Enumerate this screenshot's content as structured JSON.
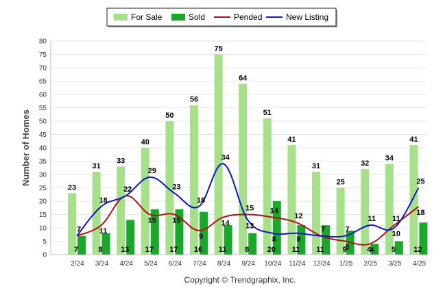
{
  "chart_data": {
    "type": "bar",
    "categories": [
      "2/24",
      "3/24",
      "4/24",
      "5/24",
      "6/24",
      "7/24",
      "8/24",
      "9/24",
      "10/24",
      "11/24",
      "12/24",
      "1/25",
      "2/25",
      "3/25",
      "4/25"
    ],
    "series": [
      {
        "name": "For Sale",
        "type": "bar",
        "color": "#a6e08a",
        "values": [
          23,
          31,
          33,
          40,
          50,
          56,
          75,
          64,
          51,
          41,
          31,
          25,
          32,
          34,
          41
        ]
      },
      {
        "name": "Sold",
        "type": "bar",
        "color": "#1aa82a",
        "values": [
          7,
          8,
          13,
          17,
          17,
          16,
          11,
          8,
          20,
          11,
          11,
          9,
          4,
          5,
          12
        ]
      },
      {
        "name": "Pended",
        "type": "line",
        "color": "#b01010",
        "values": [
          7,
          11,
          22,
          15,
          15,
          9,
          14,
          15,
          14,
          12,
          7,
          5,
          4,
          11,
          18
        ]
      },
      {
        "name": "New Listing",
        "type": "line",
        "color": "#0a14c8",
        "values": [
          7,
          18,
          22,
          29,
          23,
          18,
          34,
          13,
          8,
          8,
          7,
          7,
          11,
          10,
          25
        ]
      }
    ],
    "ylabel": "Number of Homes",
    "ylim": [
      0,
      80
    ],
    "yticks": [
      0,
      5,
      10,
      15,
      20,
      25,
      30,
      35,
      40,
      45,
      50,
      55,
      60,
      65,
      70,
      75,
      80
    ],
    "grid": true,
    "legend": "top-center",
    "footer": "Copyright © Trendgraphix, Inc."
  }
}
